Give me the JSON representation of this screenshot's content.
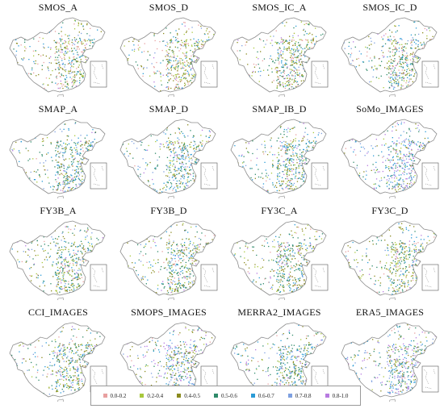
{
  "panels": [
    {
      "title": "SMOS_A",
      "weights": [
        4,
        3,
        5,
        3,
        3,
        2,
        1
      ]
    },
    {
      "title": "SMOS_D",
      "weights": [
        4,
        4,
        5,
        3,
        3,
        2,
        1
      ]
    },
    {
      "title": "SMOS_IC_A",
      "weights": [
        3,
        3,
        5,
        4,
        3,
        2,
        1
      ]
    },
    {
      "title": "SMOS_IC_D",
      "weights": [
        3,
        3,
        5,
        4,
        3,
        2,
        1
      ]
    },
    {
      "title": "SMAP_A",
      "weights": [
        1,
        2,
        4,
        5,
        5,
        3,
        1
      ]
    },
    {
      "title": "SMAP_D",
      "weights": [
        1,
        2,
        4,
        5,
        4,
        3,
        1
      ]
    },
    {
      "title": "SMAP_IB_D",
      "weights": [
        1,
        2,
        4,
        5,
        4,
        2,
        1
      ]
    },
    {
      "title": "SoMo_IMAGES",
      "weights": [
        1,
        1,
        2,
        3,
        5,
        5,
        4
      ]
    },
    {
      "title": "FY3B_A",
      "weights": [
        2,
        3,
        5,
        5,
        3,
        2,
        1
      ]
    },
    {
      "title": "FY3B_D",
      "weights": [
        2,
        3,
        5,
        5,
        3,
        2,
        1
      ]
    },
    {
      "title": "FY3C_A",
      "weights": [
        2,
        3,
        5,
        5,
        3,
        1,
        1
      ]
    },
    {
      "title": "FY3C_D",
      "weights": [
        2,
        3,
        5,
        5,
        3,
        1,
        1
      ]
    },
    {
      "title": "CCI_IMAGES",
      "weights": [
        1,
        3,
        5,
        4,
        4,
        3,
        1
      ]
    },
    {
      "title": "SMOPS_IMAGES",
      "weights": [
        1,
        2,
        4,
        3,
        3,
        4,
        4
      ]
    },
    {
      "title": "MERRA2_IMAGES",
      "weights": [
        1,
        2,
        4,
        5,
        4,
        3,
        2
      ]
    },
    {
      "title": "ERA5_IMAGES",
      "weights": [
        1,
        2,
        3,
        4,
        4,
        4,
        3
      ]
    }
  ],
  "legend": {
    "items": [
      {
        "label": "0.0-0.2",
        "color": "#e8a0a0"
      },
      {
        "label": "0.2-0.4",
        "color": "#a8c83c"
      },
      {
        "label": "0.4-0.5",
        "color": "#8a8a1e"
      },
      {
        "label": "0.5-0.6",
        "color": "#2f8a6a"
      },
      {
        "label": "0.6-0.7",
        "color": "#2a9bd6"
      },
      {
        "label": "0.7-0.8",
        "color": "#7ea0e0"
      },
      {
        "label": "0.8-1.0",
        "color": "#b77be0"
      }
    ]
  }
}
